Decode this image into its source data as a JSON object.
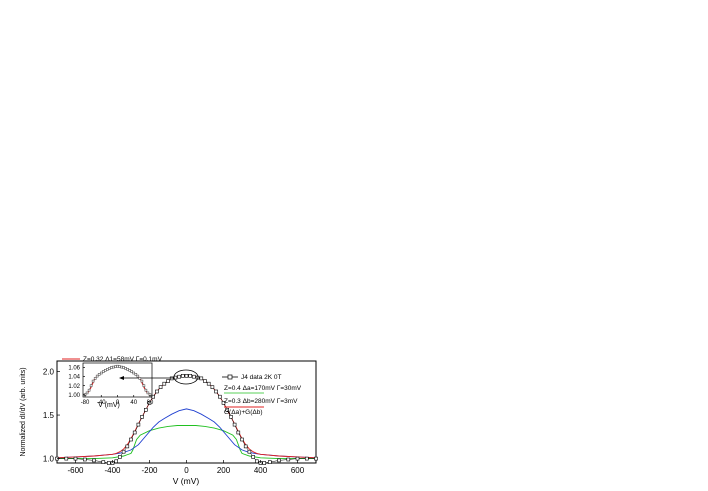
{
  "chart_data": [
    {
      "type": "line",
      "xlabel": "V (mV)",
      "ylabel": "Normalized dI/dV (arb. units)",
      "xlim": [
        -700,
        700
      ],
      "ylim": [
        0.95,
        2.12
      ],
      "xticks": [
        -600,
        -400,
        -200,
        0,
        200,
        400,
        600
      ],
      "xtick_labels": [
        "-600",
        "-400",
        "-200",
        "0",
        "200",
        "400",
        "600"
      ],
      "yticks": [
        1.0,
        1.5,
        2.0
      ],
      "ytick_labels": [
        "1.0",
        "1.5",
        "2.0"
      ],
      "legend_placement": "right",
      "legend": [
        {
          "text": "J4 data  2K  0T",
          "series": "data"
        },
        {
          "text": "Z=0.4  Δa=170mV  Γ=30mV",
          "series": "blue"
        },
        {
          "text": "Z=0.3  Δb=280mV  Γ=3mV",
          "series": "green"
        },
        {
          "text": "G(Δa)+G(Δb)",
          "series": "sum"
        }
      ],
      "series": [
        {
          "name": "J4 data  2K  0T",
          "color": "#000000",
          "marker": "open-square",
          "x": [
            -700,
            -650,
            -600,
            -550,
            -500,
            -450,
            -420,
            -400,
            -380,
            -360,
            -340,
            -320,
            -300,
            -280,
            -260,
            -240,
            -220,
            -200,
            -180,
            -160,
            -140,
            -120,
            -100,
            -80,
            -60,
            -40,
            -20,
            0,
            20,
            40,
            60,
            80,
            100,
            120,
            140,
            160,
            180,
            200,
            220,
            240,
            260,
            280,
            300,
            320,
            340,
            360,
            380,
            400,
            420,
            450,
            500,
            550,
            600,
            650,
            700
          ],
          "y": [
            1.0,
            1.0,
            1.0,
            0.99,
            0.98,
            0.96,
            0.95,
            0.95,
            0.97,
            1.02,
            1.08,
            1.14,
            1.22,
            1.3,
            1.39,
            1.48,
            1.56,
            1.64,
            1.71,
            1.77,
            1.82,
            1.86,
            1.89,
            1.92,
            1.93,
            1.94,
            1.95,
            1.95,
            1.95,
            1.94,
            1.93,
            1.92,
            1.89,
            1.86,
            1.82,
            1.77,
            1.71,
            1.64,
            1.56,
            1.48,
            1.39,
            1.3,
            1.22,
            1.14,
            1.08,
            1.02,
            0.97,
            0.95,
            0.95,
            0.96,
            0.98,
            0.99,
            1.0,
            1.0,
            1.0
          ]
        },
        {
          "name": "G(Δa)+G(Δb)",
          "color": "#e02020",
          "x": [
            -700,
            -600,
            -500,
            -450,
            -400,
            -380,
            -360,
            -340,
            -320,
            -300,
            -280,
            -260,
            -240,
            -220,
            -200,
            -180,
            -160,
            -140,
            -120,
            -100,
            -80,
            -60,
            -40,
            -20,
            0,
            20,
            40,
            60,
            80,
            100,
            120,
            140,
            160,
            180,
            200,
            220,
            240,
            260,
            280,
            300,
            320,
            340,
            360,
            380,
            400,
            450,
            500,
            600,
            700
          ],
          "y": [
            1.01,
            1.02,
            1.03,
            1.04,
            1.05,
            1.06,
            1.08,
            1.11,
            1.16,
            1.23,
            1.31,
            1.4,
            1.48,
            1.56,
            1.64,
            1.71,
            1.77,
            1.82,
            1.86,
            1.89,
            1.92,
            1.93,
            1.94,
            1.95,
            1.95,
            1.95,
            1.94,
            1.93,
            1.92,
            1.89,
            1.86,
            1.82,
            1.77,
            1.71,
            1.64,
            1.56,
            1.48,
            1.4,
            1.31,
            1.23,
            1.16,
            1.11,
            1.08,
            1.06,
            1.05,
            1.04,
            1.03,
            1.02,
            1.01
          ]
        },
        {
          "name": "Z=0.4  Δa=170mV  Γ=30mV",
          "color": "#2040d0",
          "x": [
            -700,
            -600,
            -500,
            -400,
            -340,
            -300,
            -260,
            -220,
            -180,
            -150,
            -120,
            -80,
            -40,
            0,
            40,
            80,
            120,
            150,
            180,
            220,
            260,
            300,
            340,
            400,
            500,
            600,
            700
          ],
          "y": [
            1.01,
            1.02,
            1.03,
            1.05,
            1.07,
            1.1,
            1.16,
            1.26,
            1.36,
            1.42,
            1.46,
            1.51,
            1.55,
            1.57,
            1.55,
            1.51,
            1.46,
            1.42,
            1.36,
            1.26,
            1.16,
            1.1,
            1.07,
            1.05,
            1.03,
            1.02,
            1.01
          ]
        },
        {
          "name": "Z=0.3  Δb=280mV  Γ=3mV",
          "color": "#20c020",
          "x": [
            -700,
            -500,
            -400,
            -340,
            -300,
            -290,
            -280,
            -270,
            -250,
            -200,
            -150,
            -100,
            -50,
            0,
            50,
            100,
            150,
            200,
            250,
            270,
            280,
            290,
            300,
            340,
            400,
            500,
            700
          ],
          "y": [
            1.0,
            1.0,
            1.01,
            1.03,
            1.06,
            1.1,
            1.16,
            1.22,
            1.27,
            1.32,
            1.35,
            1.37,
            1.38,
            1.38,
            1.38,
            1.37,
            1.35,
            1.32,
            1.27,
            1.22,
            1.16,
            1.1,
            1.06,
            1.03,
            1.01,
            1.0,
            1.0
          ]
        }
      ],
      "annotation": {
        "type": "ellipse",
        "x": 0,
        "y": 1.98
      }
    },
    {
      "type": "line",
      "xlabel": "V (mV)",
      "xlim": [
        -85,
        85
      ],
      "ylim": [
        0.995,
        1.07
      ],
      "xticks": [
        -80,
        -40,
        0,
        40,
        80
      ],
      "xtick_labels": [
        "-80",
        "-40",
        "0",
        "40",
        "80"
      ],
      "yticks": [
        1.0,
        1.02,
        1.04,
        1.06
      ],
      "ytick_labels": [
        "1.00",
        "1.02",
        "1.04",
        "1.06"
      ],
      "legend": [
        {
          "text": "Z=0.32  Δ1=58mV  Γ=0.1mV",
          "series": "fit"
        }
      ],
      "series": [
        {
          "name": "data",
          "color": "#555555",
          "marker": "open-square",
          "x": [
            -80,
            -75,
            -70,
            -65,
            -60,
            -55,
            -50,
            -45,
            -40,
            -35,
            -30,
            -25,
            -20,
            -15,
            -10,
            -5,
            0,
            5,
            10,
            15,
            20,
            25,
            30,
            35,
            40,
            45,
            50,
            55,
            60,
            65,
            70,
            75,
            80
          ],
          "y": [
            1.0,
            1.004,
            1.01,
            1.02,
            1.03,
            1.036,
            1.041,
            1.045,
            1.048,
            1.051,
            1.054,
            1.056,
            1.058,
            1.06,
            1.061,
            1.062,
            1.063,
            1.062,
            1.061,
            1.06,
            1.058,
            1.056,
            1.054,
            1.051,
            1.048,
            1.045,
            1.041,
            1.036,
            1.03,
            1.02,
            1.01,
            1.004,
            1.0
          ]
        },
        {
          "name": "Z=0.32  Δ1=58mV  Γ=0.1mV",
          "color": "#e02020",
          "x": [
            -80,
            -72,
            -66,
            -62,
            -58,
            -55,
            -50,
            -45,
            -40,
            -30,
            -20,
            -10,
            0,
            10,
            20,
            30,
            40,
            45,
            50,
            55,
            58,
            62,
            66,
            72,
            80
          ],
          "y": [
            1.0,
            1.006,
            1.015,
            1.023,
            1.032,
            1.036,
            1.041,
            1.045,
            1.048,
            1.054,
            1.058,
            1.061,
            1.063,
            1.061,
            1.058,
            1.054,
            1.048,
            1.045,
            1.041,
            1.036,
            1.032,
            1.023,
            1.015,
            1.006,
            1.0
          ]
        }
      ]
    }
  ]
}
